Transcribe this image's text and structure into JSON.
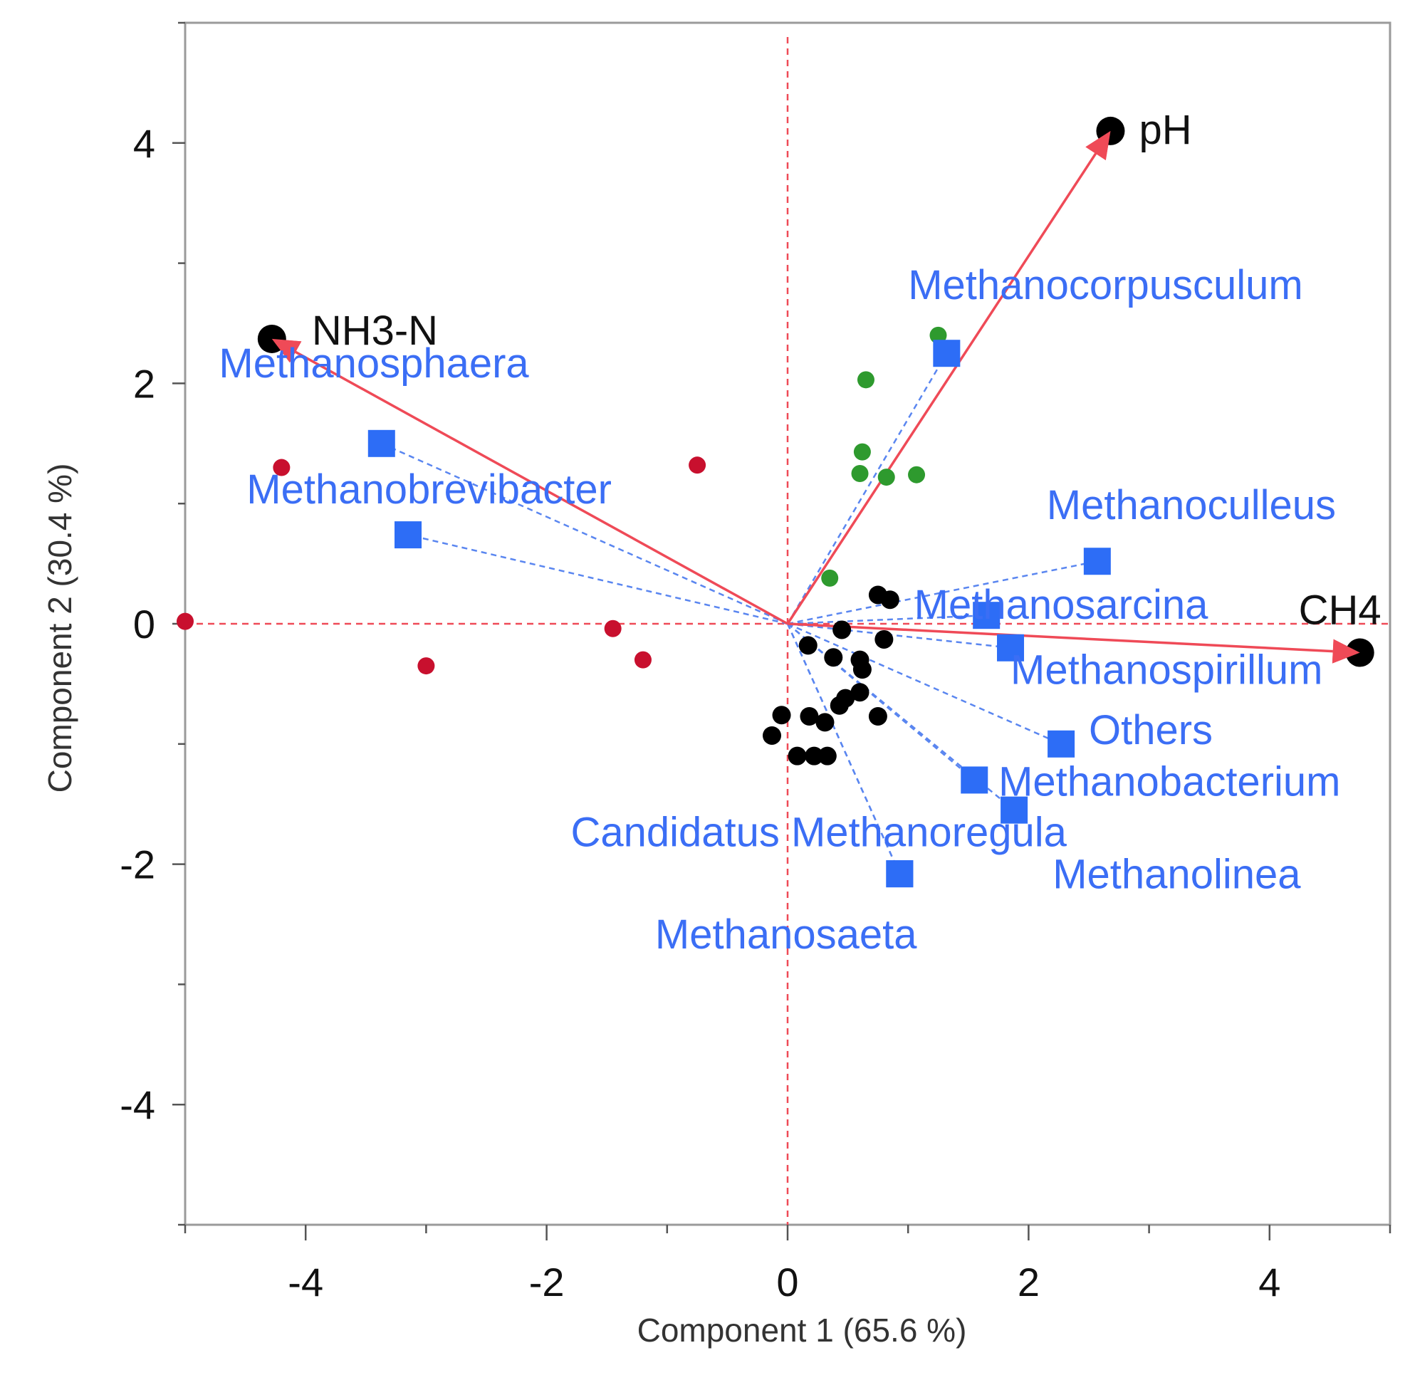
{
  "chart_data": {
    "type": "scatter",
    "subtype": "pca-biplot",
    "title": "",
    "xlabel": "Component 1  (65.6 %)",
    "ylabel": "Component 2  (30.4 %)",
    "xlim": [
      -5,
      5
    ],
    "ylim": [
      -5,
      5
    ],
    "x_ticks": [
      -4,
      -2,
      0,
      2,
      4
    ],
    "y_ticks": [
      4,
      2,
      0,
      -2,
      -4
    ],
    "grid": false,
    "legend": "none",
    "colors": {
      "env_arrow": "#ef4a57",
      "env_point": "#000000",
      "species": "#2d6df6",
      "species_label": "#3b6ef5",
      "species_line": "#5a86f0",
      "zero_line": "#ef4a57",
      "group_red": "#c8102e",
      "group_green": "#2e9a2e",
      "group_black": "#000000"
    },
    "environmental_vectors": [
      {
        "name": "pH",
        "x": 2.68,
        "y": 4.1
      },
      {
        "name": "NH3-N",
        "x": -4.28,
        "y": 2.37
      },
      {
        "name": "CH4",
        "x": 4.75,
        "y": -0.24
      }
    ],
    "species": [
      {
        "name": "Methanocorpusculum",
        "x": 1.32,
        "y": 2.25,
        "label_x": 1.0,
        "label_y": 2.7
      },
      {
        "name": "Methanosphaera",
        "x": -3.37,
        "y": 1.5,
        "label_x": -4.72,
        "label_y": 2.05
      },
      {
        "name": "Methanobrevibacter",
        "x": -3.15,
        "y": 0.74,
        "label_x": -4.49,
        "label_y": 1.0
      },
      {
        "name": "Methanoculleus",
        "x": 2.57,
        "y": 0.52,
        "label_x": 2.15,
        "label_y": 0.87
      },
      {
        "name": "Methanosarcina",
        "x": 1.65,
        "y": 0.07,
        "label_x": 1.05,
        "label_y": 0.04
      },
      {
        "name": "Methanospirillum",
        "x": 1.85,
        "y": -0.2,
        "label_x": 1.85,
        "label_y": -0.5
      },
      {
        "name": "Others",
        "x": 2.27,
        "y": -1.0,
        "label_x": 2.5,
        "label_y": -1.0
      },
      {
        "name": "Methanobacterium",
        "x": 1.55,
        "y": -1.3,
        "label_x": 1.75,
        "label_y": -1.43
      },
      {
        "name": "Methanolinea",
        "x": 1.88,
        "y": -1.55,
        "label_x": 2.2,
        "label_y": -2.2
      },
      {
        "name": "Candidatus Methanoregula",
        "x": 0.93,
        "y": -2.08,
        "label_x": -1.8,
        "label_y": -1.85
      },
      {
        "name": "Methanosaeta",
        "x": 0.93,
        "y": -2.08,
        "label_x": -1.1,
        "label_y": -2.7
      }
    ],
    "sample_groups": [
      {
        "name": "red",
        "points": [
          [
            -5.0,
            0.02
          ],
          [
            -4.2,
            1.3
          ],
          [
            -3.0,
            -0.35
          ],
          [
            -1.45,
            -0.04
          ],
          [
            -1.2,
            -0.3
          ],
          [
            -0.75,
            1.32
          ]
        ]
      },
      {
        "name": "green",
        "points": [
          [
            1.25,
            2.4
          ],
          [
            0.65,
            2.03
          ],
          [
            0.62,
            1.43
          ],
          [
            0.6,
            1.25
          ],
          [
            0.82,
            1.22
          ],
          [
            1.07,
            1.24
          ],
          [
            0.35,
            0.38
          ]
        ]
      },
      {
        "name": "black",
        "points": [
          [
            0.75,
            0.24
          ],
          [
            0.85,
            0.2
          ],
          [
            0.45,
            -0.05
          ],
          [
            0.8,
            -0.13
          ],
          [
            0.17,
            -0.18
          ],
          [
            0.38,
            -0.28
          ],
          [
            0.6,
            -0.3
          ],
          [
            0.62,
            -0.38
          ],
          [
            0.6,
            -0.57
          ],
          [
            0.48,
            -0.62
          ],
          [
            0.43,
            -0.68
          ],
          [
            0.75,
            -0.77
          ],
          [
            -0.05,
            -0.76
          ],
          [
            0.18,
            -0.77
          ],
          [
            0.31,
            -0.82
          ],
          [
            -0.13,
            -0.93
          ],
          [
            0.08,
            -1.1
          ],
          [
            0.22,
            -1.1
          ],
          [
            0.33,
            -1.1
          ]
        ]
      }
    ]
  }
}
